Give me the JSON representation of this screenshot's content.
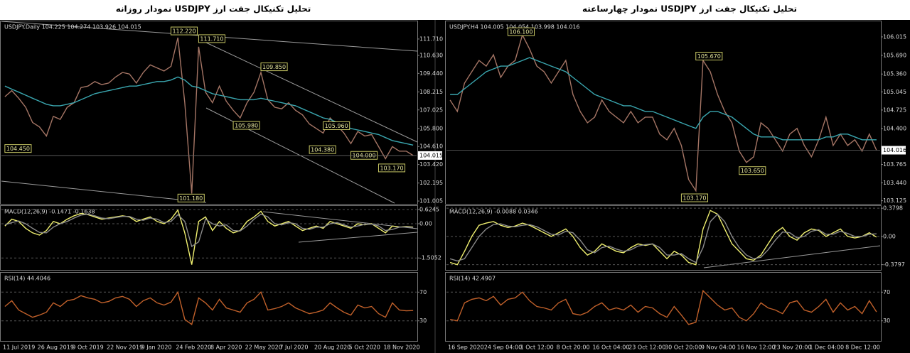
{
  "chart_data": [
    {
      "type": "line",
      "title": "تحلیل تکنیکال جفت ارز USDJPY نمودار روزانه",
      "header": "USDJPY.Daily 104.225 104.274 103.926 104.015",
      "ylim": [
        100.82,
        112.88
      ],
      "yticks": [
        {
          "value": 111.71,
          "label": "111.710"
        },
        {
          "value": 110.63,
          "label": "110.630"
        },
        {
          "value": 109.44,
          "label": "109.440"
        },
        108.215,
        107.025,
        {
          "value": 105.8,
          "label": "105.800"
        },
        {
          "value": 104.61,
          "label": "104.610"
        },
        {
          "value": 103.42,
          "label": "103.420"
        },
        102.195,
        101.005
      ],
      "grid": false,
      "price_tag": {
        "value": 104.015,
        "label": "104.015"
      },
      "series": [
        {
          "color": "#a57565",
          "values": [
            107.9,
            108.3,
            107.8,
            107.2,
            106.2,
            105.9,
            105.3,
            106.6,
            106.4,
            107.2,
            107.5,
            108.5,
            108.6,
            108.9,
            108.7,
            108.8,
            109.2,
            109.5,
            109.4,
            108.8,
            109.5,
            110.0,
            109.8,
            109.6,
            109.9,
            111.8,
            107.5,
            101.5,
            111.2,
            108.2,
            107.5,
            108.6,
            107.6,
            107.0,
            106.5,
            107.5,
            108.2,
            109.5,
            107.7,
            107.2,
            107.1,
            107.5,
            107.0,
            106.7,
            106.1,
            105.8,
            105.5,
            106.5,
            106.0,
            105.5,
            104.8,
            105.6,
            105.3,
            105.4,
            104.6,
            103.8,
            104.6,
            104.3,
            104.3,
            104.015
          ]
        },
        {
          "color": "#3aa7b0",
          "values": [
            108.6,
            108.4,
            108.2,
            108.0,
            107.8,
            107.6,
            107.4,
            107.3,
            107.3,
            107.4,
            107.5,
            107.7,
            107.9,
            108.1,
            108.2,
            108.3,
            108.4,
            108.5,
            108.6,
            108.6,
            108.7,
            108.8,
            108.9,
            108.9,
            109.0,
            109.2,
            109.0,
            108.6,
            108.5,
            108.3,
            108.1,
            108.0,
            107.9,
            107.8,
            107.7,
            107.7,
            107.7,
            107.8,
            107.7,
            107.6,
            107.5,
            107.4,
            107.3,
            107.1,
            106.9,
            106.7,
            106.5,
            106.4,
            106.2,
            106.0,
            105.8,
            105.7,
            105.6,
            105.5,
            105.4,
            105.2,
            105.0,
            104.9,
            104.8,
            104.7
          ]
        }
      ],
      "annotations": [
        {
          "value": 112.22,
          "label": "112.220",
          "at": 24
        },
        {
          "value": 111.71,
          "label": "111.710",
          "at": 28
        },
        {
          "value": 109.85,
          "label": "109.850",
          "at": 37
        },
        {
          "value": 105.98,
          "label": "105.980",
          "at": 33
        },
        {
          "value": 104.45,
          "label": "104.450",
          "at": 0
        },
        {
          "value": 104.38,
          "label": "104.380",
          "at": 44
        },
        {
          "value": 104,
          "label": "104.000",
          "at": 50
        },
        {
          "value": 103.17,
          "label": "103.170",
          "at": 54
        },
        {
          "value": 101.18,
          "label": "101.180",
          "at": 25
        },
        {
          "value": 105.96,
          "label": "105.960",
          "at": 46
        }
      ]
    },
    {
      "type": "line",
      "header": "MACD(12,26,9) -0.1471 -0.1638",
      "ylim": [
        -2.03,
        0.78
      ],
      "yticks": [
        0.6245,
        {
          "value": 0,
          "label": "0.00"
        },
        -1.5052
      ],
      "grid": true,
      "series": [
        {
          "color": "#f0f070",
          "values": [
            -0.1,
            0.2,
            0.1,
            -0.2,
            -0.4,
            -0.5,
            -0.3,
            0.1,
            0.0,
            0.2,
            0.35,
            0.45,
            0.4,
            0.3,
            0.2,
            0.25,
            0.3,
            0.35,
            0.3,
            0.1,
            0.2,
            0.3,
            0.1,
            0.0,
            0.2,
            0.6,
            -0.4,
            -1.8,
            0.1,
            0.3,
            -0.3,
            0.1,
            -0.2,
            -0.4,
            -0.3,
            0.1,
            0.3,
            0.55,
            0.1,
            -0.1,
            0.0,
            0.1,
            -0.1,
            -0.3,
            -0.2,
            -0.1,
            -0.2,
            0.1,
            0.0,
            -0.1,
            -0.2,
            0.0,
            -0.05,
            0.0,
            -0.2,
            -0.4,
            -0.1,
            -0.15,
            -0.12,
            -0.147
          ]
        },
        {
          "color": "#8a8a8a",
          "values": [
            -0.05,
            0.05,
            0.12,
            0.0,
            -0.2,
            -0.38,
            -0.4,
            -0.15,
            0.0,
            0.1,
            0.25,
            0.38,
            0.42,
            0.35,
            0.25,
            0.22,
            0.27,
            0.32,
            0.32,
            0.2,
            0.15,
            0.25,
            0.2,
            0.05,
            0.1,
            0.4,
            0.1,
            -1.0,
            -0.8,
            0.2,
            0.0,
            -0.1,
            -0.05,
            -0.3,
            -0.32,
            -0.1,
            0.2,
            0.42,
            0.3,
            0.0,
            -0.05,
            0.05,
            0.0,
            -0.2,
            -0.25,
            -0.15,
            -0.15,
            0.0,
            0.05,
            -0.05,
            -0.15,
            -0.1,
            -0.03,
            -0.02,
            -0.1,
            -0.3,
            -0.25,
            -0.15,
            -0.14,
            -0.164
          ]
        }
      ]
    },
    {
      "type": "line",
      "header": "RSI(14) 44.4046",
      "ylim": [
        2,
        97
      ],
      "yticks": [
        70,
        30
      ],
      "grid": true,
      "categories": [
        "11 Jul 2019",
        null,
        null,
        null,
        null,
        "26 Aug 2019",
        null,
        null,
        null,
        null,
        "9 Oct 2019",
        null,
        null,
        null,
        null,
        "22 Nov 2019",
        null,
        null,
        null,
        null,
        "9 Jan 2020",
        null,
        null,
        null,
        null,
        "24 Feb 2020",
        null,
        null,
        null,
        null,
        "8 Apr 2020",
        null,
        null,
        null,
        null,
        "22 May 2020",
        null,
        null,
        null,
        null,
        "7 Jul 2020",
        null,
        null,
        null,
        null,
        "20 Aug 2020",
        null,
        null,
        null,
        null,
        "5 Oct 2020",
        null,
        null,
        null,
        null,
        "18 Nov 2020",
        null,
        null,
        null,
        null
      ],
      "series": [
        {
          "color": "#c0602a",
          "values": [
            50,
            58,
            45,
            40,
            35,
            38,
            42,
            55,
            50,
            58,
            60,
            65,
            62,
            60,
            55,
            57,
            62,
            64,
            60,
            50,
            58,
            62,
            55,
            52,
            56,
            70,
            32,
            25,
            62,
            55,
            45,
            60,
            48,
            45,
            42,
            55,
            60,
            70,
            45,
            47,
            50,
            55,
            48,
            44,
            40,
            42,
            45,
            55,
            48,
            42,
            38,
            52,
            48,
            50,
            40,
            35,
            55,
            45,
            44,
            44.4
          ]
        }
      ]
    },
    {
      "type": "line",
      "title": "تحلیل تکنیکال جفت ارز USDJPY نمودار چهارساعته",
      "header": "USDJPY.H4 104.005 104.054 103.998 104.016",
      "ylim": [
        103.07,
        106.29
      ],
      "yticks": [
        106.015,
        {
          "value": 105.69,
          "label": "105.690"
        },
        {
          "value": 105.36,
          "label": "105.360"
        },
        105.045,
        104.725,
        {
          "value": 104.4,
          "label": "104.400"
        },
        103.765,
        {
          "value": 103.44,
          "label": "103.440"
        },
        103.125
      ],
      "grid": false,
      "price_tag": {
        "value": 104.016,
        "label": "104.016"
      },
      "series": [
        {
          "color": "#a57565",
          "values": [
            104.9,
            104.7,
            105.2,
            105.4,
            105.6,
            105.5,
            105.7,
            105.3,
            105.5,
            105.6,
            106.05,
            105.8,
            105.5,
            105.4,
            105.2,
            105.4,
            105.6,
            105.0,
            104.7,
            104.5,
            104.6,
            104.9,
            104.7,
            104.6,
            104.5,
            104.7,
            104.5,
            104.6,
            104.6,
            104.3,
            104.2,
            104.4,
            104.1,
            103.5,
            103.3,
            105.6,
            105.4,
            105.0,
            104.7,
            104.5,
            104.0,
            103.8,
            103.9,
            104.5,
            104.4,
            104.2,
            104.0,
            104.3,
            104.4,
            104.1,
            103.9,
            104.2,
            104.6,
            104.1,
            104.3,
            104.1,
            104.2,
            104.0,
            104.3,
            104.016
          ]
        },
        {
          "color": "#3aa7b0",
          "values": [
            105.0,
            105.0,
            105.1,
            105.2,
            105.3,
            105.4,
            105.45,
            105.5,
            105.5,
            105.55,
            105.6,
            105.65,
            105.6,
            105.55,
            105.5,
            105.45,
            105.4,
            105.3,
            105.2,
            105.1,
            105.0,
            104.95,
            104.9,
            104.85,
            104.8,
            104.8,
            104.75,
            104.7,
            104.7,
            104.65,
            104.6,
            104.55,
            104.5,
            104.45,
            104.4,
            104.6,
            104.7,
            104.7,
            104.65,
            104.6,
            104.5,
            104.4,
            104.3,
            104.25,
            104.25,
            104.25,
            104.2,
            104.2,
            104.2,
            104.2,
            104.2,
            104.2,
            104.25,
            104.25,
            104.3,
            104.3,
            104.25,
            104.2,
            104.2,
            104.2
          ]
        }
      ],
      "annotations": [
        {
          "value": 106.1,
          "label": "106.100",
          "at": 8
        },
        {
          "value": 105.67,
          "label": "105.670",
          "at": 34
        },
        {
          "value": 103.17,
          "label": "103.170",
          "at": 32
        },
        {
          "value": 103.65,
          "label": "103.650",
          "at": 40
        }
      ]
    },
    {
      "type": "line",
      "header": "MACD(12,26,9) -0.0088 0.0346",
      "ylim": [
        -0.45,
        0.41
      ],
      "yticks": [
        0.3798,
        {
          "value": 0,
          "label": "0.00"
        },
        -0.3797
      ],
      "grid": true,
      "series": [
        {
          "color": "#f0f070",
          "values": [
            -0.35,
            -0.38,
            -0.2,
            0.0,
            0.15,
            0.18,
            0.2,
            0.15,
            0.12,
            0.14,
            0.18,
            0.15,
            0.1,
            0.05,
            0.0,
            0.05,
            0.1,
            0.0,
            -0.15,
            -0.25,
            -0.2,
            -0.1,
            -0.15,
            -0.2,
            -0.22,
            -0.15,
            -0.1,
            -0.12,
            -0.1,
            -0.2,
            -0.3,
            -0.2,
            -0.25,
            -0.35,
            -0.38,
            0.1,
            0.35,
            0.3,
            0.1,
            -0.1,
            -0.2,
            -0.3,
            -0.32,
            -0.25,
            -0.1,
            0.05,
            0.12,
            0.0,
            -0.05,
            0.05,
            0.1,
            0.08,
            0.0,
            0.05,
            0.1,
            0.0,
            -0.02,
            0.0,
            0.05,
            -0.009
          ]
        },
        {
          "color": "#8a8a8a",
          "values": [
            -0.3,
            -0.33,
            -0.3,
            -0.15,
            0.0,
            0.1,
            0.16,
            0.17,
            0.14,
            0.13,
            0.15,
            0.16,
            0.13,
            0.08,
            0.03,
            0.02,
            0.07,
            0.05,
            -0.05,
            -0.18,
            -0.22,
            -0.15,
            -0.13,
            -0.17,
            -0.2,
            -0.18,
            -0.13,
            -0.11,
            -0.1,
            -0.15,
            -0.25,
            -0.25,
            -0.23,
            -0.3,
            -0.35,
            -0.15,
            0.2,
            0.3,
            0.2,
            0.0,
            -0.15,
            -0.25,
            -0.3,
            -0.28,
            -0.18,
            -0.05,
            0.06,
            0.05,
            -0.02,
            0.0,
            0.07,
            0.09,
            0.03,
            0.03,
            0.07,
            0.04,
            0.0,
            0.0,
            0.03,
            0.035
          ]
        }
      ]
    },
    {
      "type": "line",
      "header": "RSI(14) 42.4907",
      "ylim": [
        2,
        97
      ],
      "yticks": [
        70,
        30
      ],
      "grid": true,
      "categories": [
        "16 Sep 2020",
        null,
        null,
        null,
        null,
        "24 Sep 04:00",
        null,
        null,
        null,
        null,
        "1 Oct 12:00",
        null,
        null,
        null,
        null,
        "8 Oct 20:00",
        null,
        null,
        null,
        null,
        "16 Oct 04:00",
        null,
        null,
        null,
        null,
        "23 Oct 12:00",
        null,
        null,
        null,
        null,
        "30 Oct 20:00",
        null,
        null,
        null,
        null,
        "9 Nov 04:00",
        null,
        null,
        null,
        null,
        "16 Nov 12:00",
        null,
        null,
        null,
        null,
        "23 Nov 20:00",
        null,
        null,
        null,
        null,
        "1 Dec 04:00",
        null,
        null,
        null,
        null,
        "8 Dec 12:00",
        null,
        null,
        null,
        null
      ],
      "series": [
        {
          "color": "#c0602a",
          "values": [
            32,
            30,
            55,
            60,
            62,
            58,
            64,
            52,
            60,
            62,
            70,
            58,
            50,
            48,
            45,
            55,
            60,
            40,
            38,
            42,
            50,
            55,
            45,
            48,
            45,
            52,
            42,
            50,
            48,
            40,
            35,
            50,
            38,
            25,
            28,
            72,
            62,
            52,
            45,
            48,
            35,
            30,
            40,
            55,
            48,
            45,
            40,
            55,
            58,
            45,
            42,
            50,
            60,
            42,
            55,
            45,
            50,
            40,
            58,
            42.5
          ]
        }
      ]
    }
  ]
}
